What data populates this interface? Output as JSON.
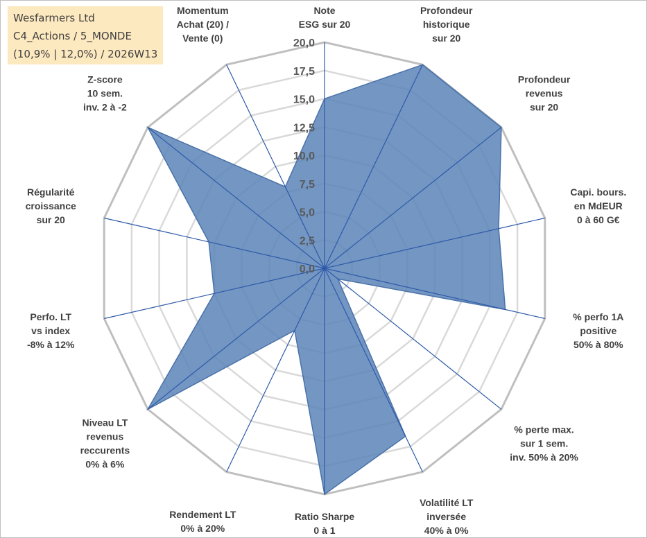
{
  "info": {
    "company": "Wesfarmers Ltd",
    "category": "C4_Actions / 5_MONDE",
    "stats": "(10,9% | 12,0%) / 2026W13"
  },
  "chart_data": {
    "type": "radar",
    "title": "",
    "rmin": 0,
    "rmax": 20,
    "ticks": [
      "0,0",
      "2,5",
      "5,0",
      "7,5",
      "10,0",
      "12,5",
      "15,0",
      "17,5",
      "20,0"
    ],
    "axes": [
      [
        "Note",
        "ESG sur 20"
      ],
      [
        "Profondeur",
        "historique",
        "sur 20"
      ],
      [
        "Profondeur",
        "revenus",
        "sur 20"
      ],
      [
        "Capi. bours.",
        "en MdEUR",
        "0 à 60 G€"
      ],
      [
        "% perfo 1A",
        "positive",
        "50% à 80%"
      ],
      [
        "% perte max.",
        "sur 1 sem.",
        "inv. 50% à 20%"
      ],
      [
        "Volatilité LT",
        "inversée",
        "40% à 0%"
      ],
      [
        "Ratio Sharpe",
        "0 à 1"
      ],
      [
        "Rendement LT",
        "0% à 20%"
      ],
      [
        "Niveau LT",
        "revenus",
        "reccurents",
        "0% à 6%"
      ],
      [
        "Perfo. LT",
        "vs index",
        "-8% à 12%"
      ],
      [
        "Régularité",
        "croissance",
        "sur 20"
      ],
      [
        "Z-score",
        "10 sem.",
        "inv. 2 à -2"
      ],
      [
        "Momentum",
        "Achat (20) /",
        "Vente (0)"
      ]
    ],
    "series": [
      {
        "name": "Wesfarmers Ltd",
        "color": "#5b84b8",
        "values": [
          15.0,
          20.0,
          20.0,
          15.8,
          16.4,
          1.5,
          16.5,
          20.0,
          6.1,
          20.0,
          10.0,
          10.5,
          20.0,
          8.0
        ]
      }
    ],
    "grid": true
  }
}
